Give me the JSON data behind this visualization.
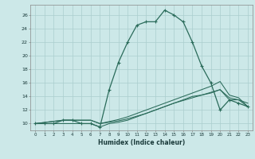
{
  "xlabel": "Humidex (Indice chaleur)",
  "bg_color": "#cce8e8",
  "grid_color": "#aacece",
  "line_color": "#2a6b5a",
  "xlim": [
    -0.5,
    23.5
  ],
  "ylim": [
    9.0,
    27.5
  ],
  "yticks": [
    10,
    12,
    14,
    16,
    18,
    20,
    22,
    24,
    26
  ],
  "xticks": [
    0,
    1,
    2,
    3,
    4,
    5,
    6,
    7,
    8,
    9,
    10,
    11,
    12,
    13,
    14,
    15,
    16,
    17,
    18,
    19,
    20,
    21,
    22,
    23
  ],
  "curve1_x": [
    0,
    1,
    2,
    3,
    4,
    5,
    6,
    7,
    8,
    9,
    10,
    11,
    12,
    13,
    14,
    15,
    16,
    17,
    18,
    19,
    20,
    21,
    22,
    23
  ],
  "curve1_y": [
    10,
    10,
    10,
    10.5,
    10.5,
    10,
    10,
    9.5,
    15,
    19,
    22,
    24.5,
    25,
    25,
    26.7,
    26.0,
    25,
    22,
    18.5,
    16,
    12,
    13.5,
    13,
    12.5
  ],
  "curve2_x": [
    0,
    3,
    4,
    5,
    6,
    7,
    8,
    9,
    10,
    11,
    12,
    13,
    14,
    15,
    16,
    17,
    18,
    19,
    20,
    21,
    22,
    23
  ],
  "curve2_y": [
    10,
    10.5,
    10.5,
    10.5,
    10.5,
    10,
    10.2,
    10.4,
    10.7,
    11.1,
    11.5,
    12.0,
    12.5,
    13.0,
    13.4,
    13.8,
    14.2,
    14.6,
    15.0,
    13.8,
    13.5,
    13.0
  ],
  "curve3_x": [
    0,
    3,
    4,
    5,
    6,
    7,
    8,
    9,
    10,
    11,
    12,
    13,
    14,
    15,
    16,
    17,
    18,
    19,
    20,
    21,
    22,
    23
  ],
  "curve3_y": [
    10,
    10.5,
    10.5,
    10.5,
    10.5,
    10,
    10.3,
    10.6,
    11.0,
    11.5,
    12.0,
    12.5,
    13.0,
    13.5,
    14.0,
    14.5,
    15.0,
    15.5,
    16.2,
    14.2,
    13.8,
    12.5
  ],
  "curve4_x": [
    0,
    5,
    6,
    7,
    8,
    9,
    10,
    11,
    12,
    13,
    14,
    15,
    16,
    17,
    18,
    19,
    20,
    21,
    22,
    23
  ],
  "curve4_y": [
    10,
    10.0,
    10.0,
    9.5,
    10.0,
    10.2,
    10.5,
    11.0,
    11.5,
    12.0,
    12.5,
    13.0,
    13.5,
    14.0,
    14.2,
    14.5,
    15.0,
    13.5,
    13.5,
    12.5
  ]
}
